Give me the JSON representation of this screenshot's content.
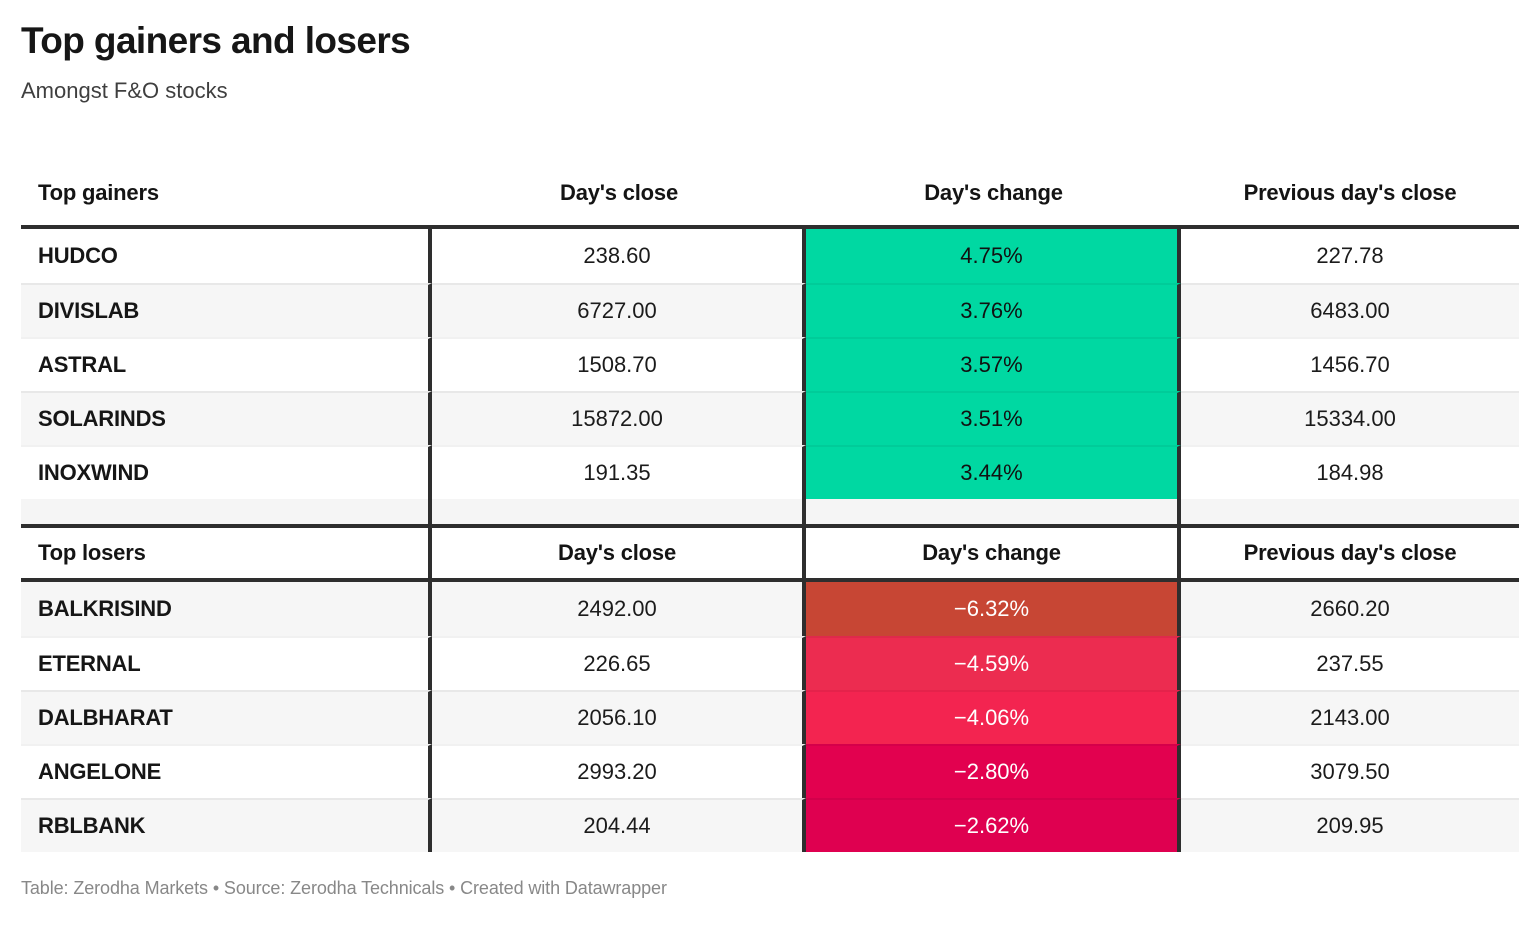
{
  "title": "Top gainers and losers",
  "subtitle": "Amongst F&O stocks",
  "chart_data": [
    {
      "type": "table",
      "title": "Top gainers",
      "columns": [
        "Top gainers",
        "Day's close",
        "Day's change",
        "Previous day's close"
      ],
      "first_row_shaded": false,
      "header_dividers": false,
      "rows": [
        {
          "cells": [
            "HUDCO",
            "238.60",
            "4.75%",
            "227.78"
          ],
          "change_value": 4.75,
          "change_bg": "#00d8a2",
          "change_text": "#111111"
        },
        {
          "cells": [
            "DIVISLAB",
            "6727.00",
            "3.76%",
            "6483.00"
          ],
          "change_value": 3.76,
          "change_bg": "#00d8a2",
          "change_text": "#111111"
        },
        {
          "cells": [
            "ASTRAL",
            "1508.70",
            "3.57%",
            "1456.70"
          ],
          "change_value": 3.57,
          "change_bg": "#00d8a2",
          "change_text": "#111111"
        },
        {
          "cells": [
            "SOLARINDS",
            "15872.00",
            "3.51%",
            "15334.00"
          ],
          "change_value": 3.51,
          "change_bg": "#00d8a2",
          "change_text": "#111111"
        },
        {
          "cells": [
            "INOXWIND",
            "191.35",
            "3.44%",
            "184.98"
          ],
          "change_value": 3.44,
          "change_bg": "#00d8a2",
          "change_text": "#111111"
        }
      ]
    },
    {
      "type": "table",
      "title": "Top losers",
      "columns": [
        "Top losers",
        "Day's close",
        "Day's change",
        "Previous day's close"
      ],
      "first_row_shaded": true,
      "header_dividers": true,
      "rows": [
        {
          "cells": [
            "BALKRISIND",
            "2492.00",
            "−6.32%",
            "2660.20"
          ],
          "change_value": -6.32,
          "change_bg": "#c74634",
          "change_text": "#ffffff"
        },
        {
          "cells": [
            "ETERNAL",
            "226.65",
            "−4.59%",
            "237.55"
          ],
          "change_value": -4.59,
          "change_bg": "#ec2c50",
          "change_text": "#ffffff"
        },
        {
          "cells": [
            "DALBHARAT",
            "2056.10",
            "−4.06%",
            "2143.00"
          ],
          "change_value": -4.06,
          "change_bg": "#f32450",
          "change_text": "#ffffff"
        },
        {
          "cells": [
            "ANGELONE",
            "2993.20",
            "−2.80%",
            "3079.50"
          ],
          "change_value": -2.8,
          "change_bg": "#e2014f",
          "change_text": "#ffffff"
        },
        {
          "cells": [
            "RBLBANK",
            "204.44",
            "−2.62%",
            "209.95"
          ],
          "change_value": -2.62,
          "change_bg": "#df0050",
          "change_text": "#ffffff"
        }
      ]
    }
  ],
  "colors": {
    "gain_cell": "#00d8a2",
    "loss_cells": [
      "#c74634",
      "#ec2c50",
      "#f32450",
      "#e2014f",
      "#df0050"
    ],
    "row_shade": "#f6f6f6",
    "border_dark": "#2e2e2e"
  },
  "footer": {
    "table_prefix": "Table: ",
    "table_credit": "Zerodha Markets",
    "source_prefix": " • Source: ",
    "source_credit": "Zerodha Technicals",
    "separator": " • ",
    "datawrapper_credit": "Created with Datawrapper"
  }
}
